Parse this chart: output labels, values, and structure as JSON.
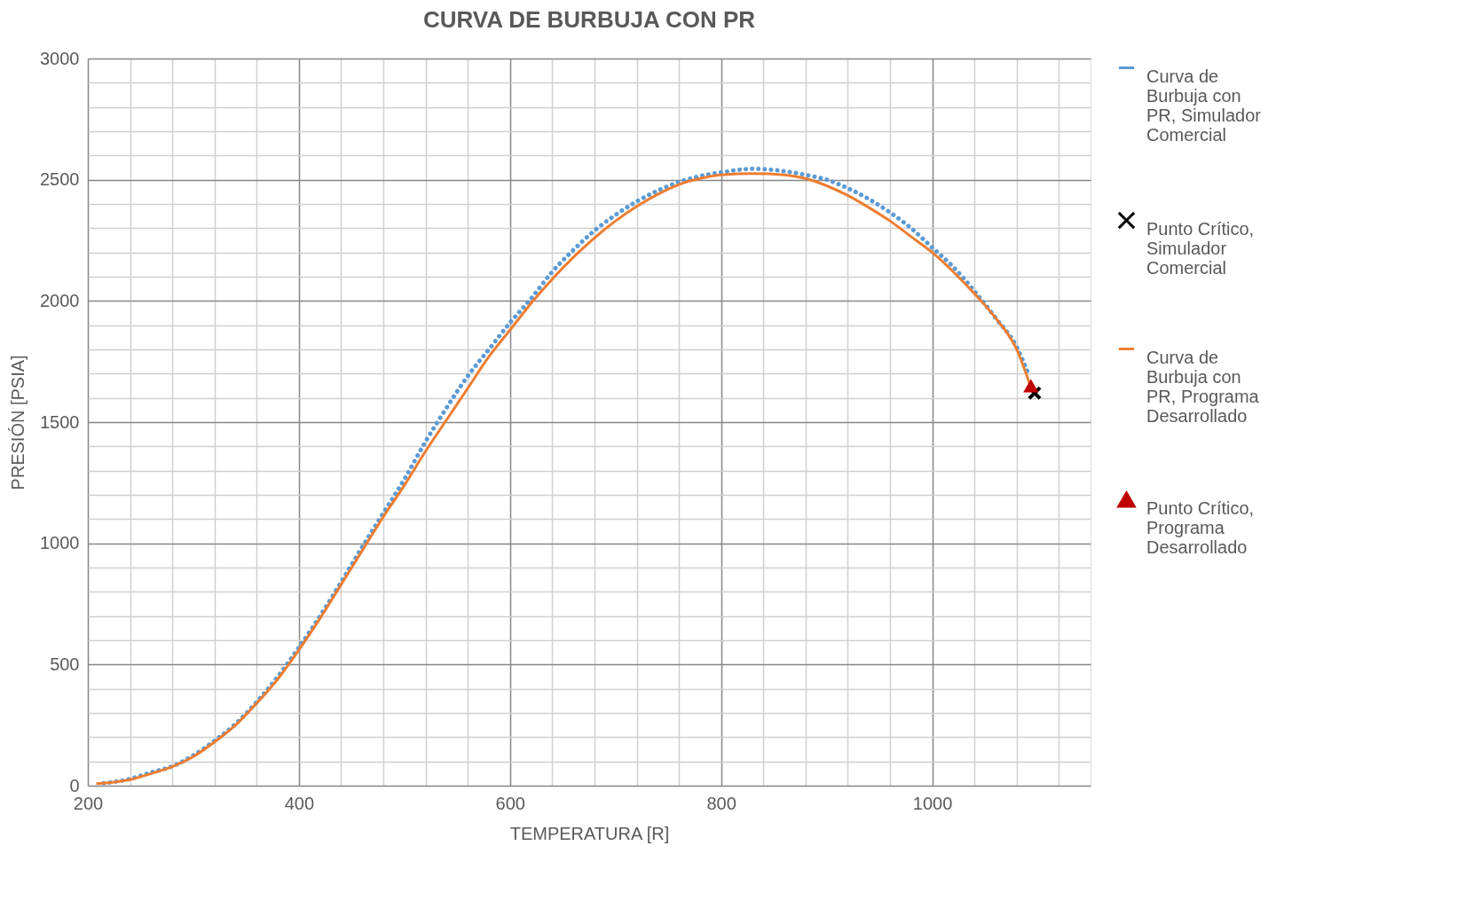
{
  "chart_data": {
    "type": "line",
    "title": "CURVA DE BURBUJA CON PR",
    "xlabel": "TEMPERATURA [R]",
    "ylabel": "PRESIÓN [PSIA]",
    "xlim": [
      200,
      1150
    ],
    "xticks": [
      200,
      400,
      600,
      800,
      1000
    ],
    "ylim": [
      0,
      3000
    ],
    "yticks": [
      0,
      500,
      1000,
      1500,
      2000,
      2500,
      3000
    ],
    "grid": true,
    "legend": "right",
    "series": [
      {
        "name": "Curva de Burbuja con PR, Simulador Comercial",
        "type": "line",
        "line_style": "dotted",
        "marker": "none",
        "color": "#5b9bd5",
        "x": [
          215,
          240,
          260,
          280,
          300,
          320,
          340,
          360,
          380,
          400,
          420,
          440,
          460,
          480,
          500,
          520,
          540,
          560,
          580,
          600,
          620,
          640,
          660,
          680,
          700,
          720,
          740,
          760,
          780,
          800,
          830,
          860,
          880,
          900,
          920,
          940,
          960,
          980,
          1000,
          1020,
          1040,
          1060,
          1080,
          1092
        ],
        "values": [
          10,
          28,
          55,
          80,
          125,
          185,
          255,
          345,
          450,
          570,
          700,
          840,
          985,
          1125,
          1265,
          1420,
          1560,
          1690,
          1800,
          1910,
          2010,
          2120,
          2210,
          2290,
          2355,
          2410,
          2455,
          2490,
          2515,
          2530,
          2545,
          2535,
          2520,
          2500,
          2465,
          2420,
          2365,
          2300,
          2220,
          2140,
          2040,
          1930,
          1810,
          1690
        ]
      },
      {
        "name": "Punto Crítico, Simulador Comercial",
        "type": "scatter",
        "marker": "cross",
        "color": "#000000",
        "x": [
          1097
        ],
        "values": [
          1620
        ]
      },
      {
        "name": "Curva de Burbuja con PR, Programa Desarrollado",
        "type": "line",
        "line_style": "solid",
        "marker": "none",
        "color": "#ed7d31",
        "x": [
          208,
          240,
          260,
          280,
          300,
          320,
          340,
          360,
          380,
          400,
          420,
          440,
          460,
          480,
          500,
          520,
          540,
          560,
          580,
          600,
          620,
          640,
          660,
          680,
          700,
          720,
          740,
          760,
          780,
          800,
          830,
          860,
          880,
          900,
          920,
          940,
          960,
          980,
          1000,
          1020,
          1040,
          1060,
          1080,
          1093
        ],
        "values": [
          8,
          25,
          50,
          78,
          120,
          180,
          250,
          340,
          440,
          560,
          690,
          830,
          970,
          1110,
          1240,
          1380,
          1510,
          1640,
          1770,
          1880,
          1990,
          2090,
          2180,
          2260,
          2330,
          2390,
          2440,
          2480,
          2505,
          2520,
          2525,
          2520,
          2505,
          2475,
          2435,
          2385,
          2330,
          2265,
          2200,
          2120,
          2030,
          1930,
          1800,
          1650
        ]
      },
      {
        "name": "Punto Crítico, Programa Desarrollado",
        "type": "scatter",
        "marker": "triangle",
        "color": "#c00000",
        "x": [
          1093.5
        ],
        "values": [
          1650
        ]
      }
    ]
  }
}
